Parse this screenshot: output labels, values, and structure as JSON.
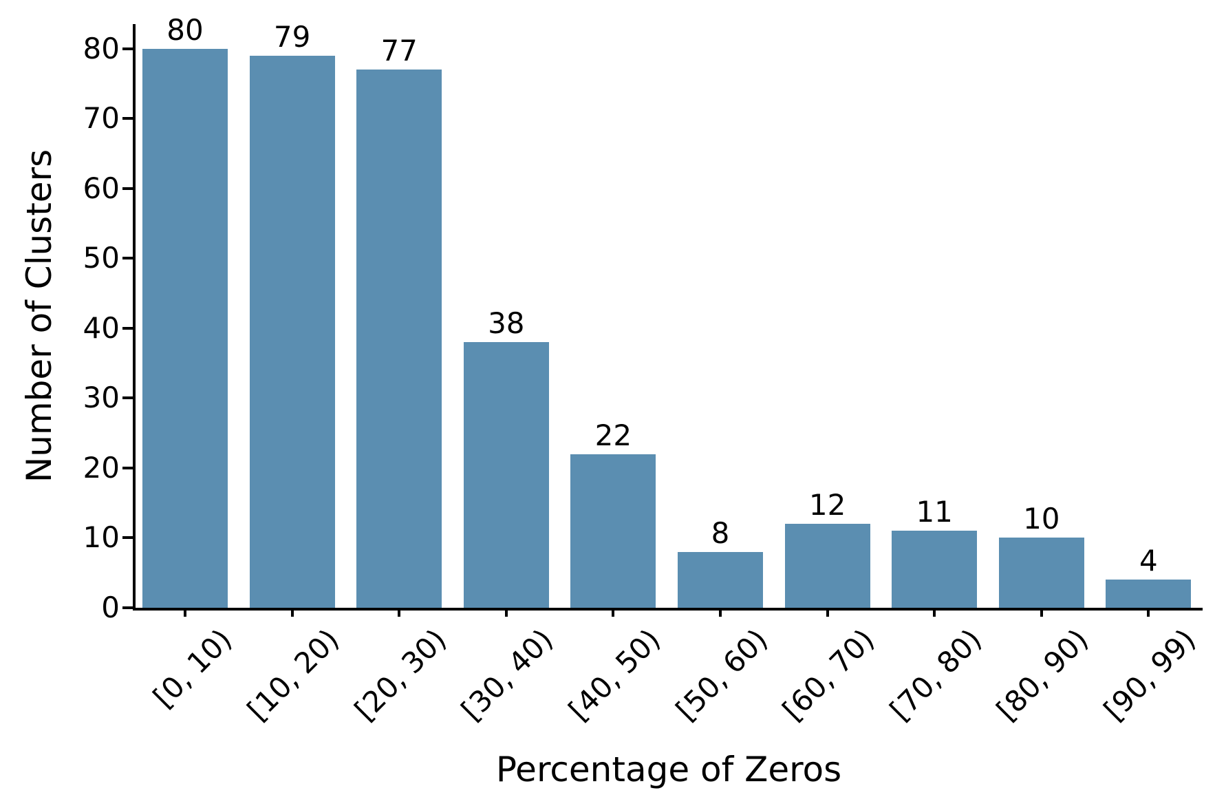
{
  "chart_data": {
    "type": "bar",
    "title": "",
    "xlabel": "Percentage of Zeros",
    "ylabel": "Number of Clusters",
    "categories": [
      "[0, 10)",
      "[10, 20)",
      "[20, 30)",
      "[30, 40)",
      "[40, 50)",
      "[50, 60)",
      "[60, 70)",
      "[70, 80)",
      "[80, 90)",
      "[90, 99)"
    ],
    "values": [
      80,
      79,
      77,
      38,
      22,
      8,
      12,
      11,
      10,
      4
    ],
    "yticks": [
      0,
      10,
      20,
      30,
      40,
      50,
      60,
      70,
      80
    ],
    "ylim": [
      0,
      83.5
    ],
    "x_tick_rotation_deg": 45,
    "grid": false,
    "legend": null,
    "bar_color": "#5b8eb1",
    "axis_color": "#000000",
    "text_color": "#000000",
    "background_color": "#ffffff"
  }
}
